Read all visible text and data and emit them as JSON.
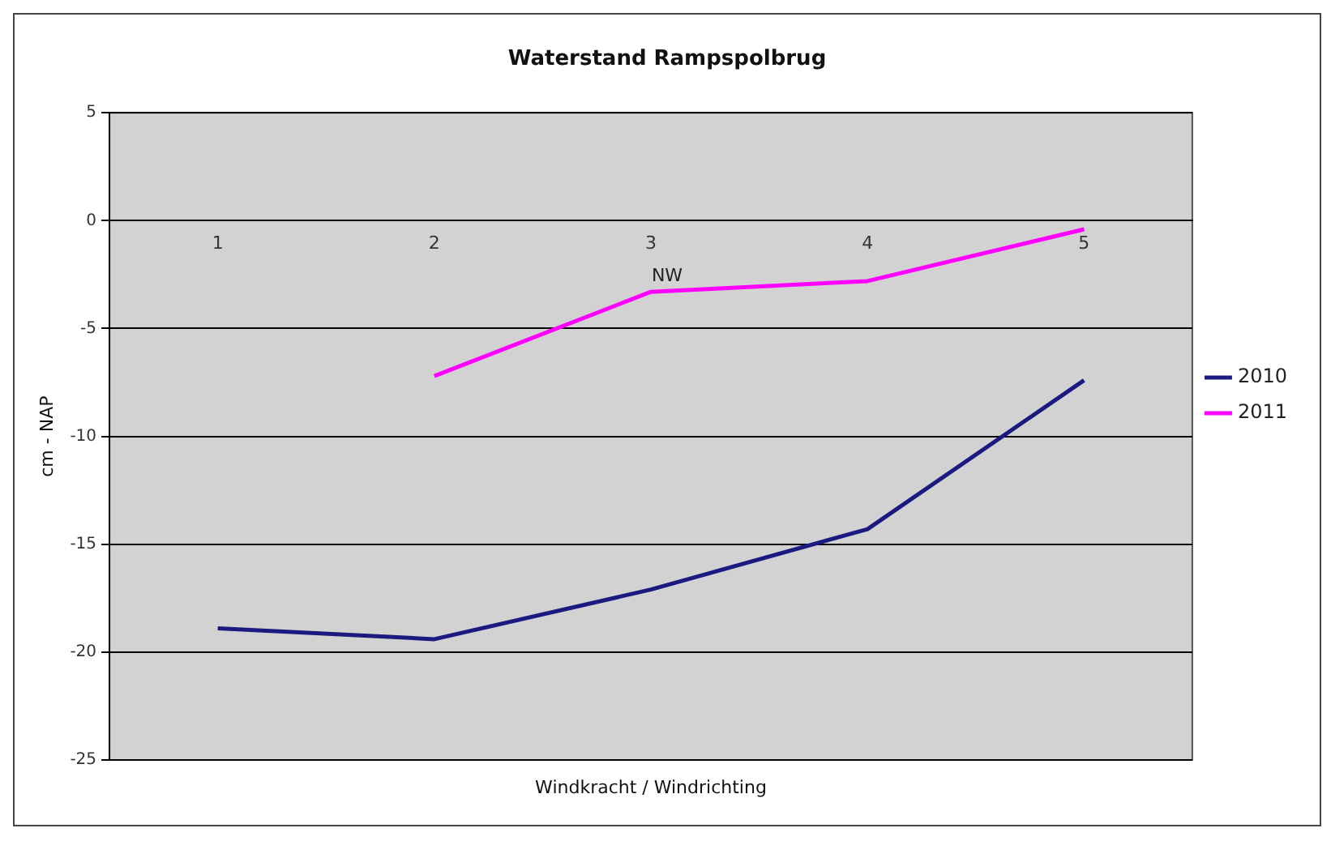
{
  "chart_data": {
    "type": "line",
    "title": "Waterstand Rampspolbrug",
    "xlabel": "Windkracht / Windrichting",
    "ylabel": "cm - NAP",
    "categories": [
      "1",
      "2",
      "3",
      "4",
      "5"
    ],
    "series": [
      {
        "name": "2010",
        "color": "#1a1a80",
        "values": [
          -18.9,
          -19.4,
          -17.1,
          -14.3,
          -7.4
        ]
      },
      {
        "name": "2011",
        "color": "#ff00ff",
        "values": [
          null,
          -7.2,
          -3.3,
          -2.8,
          -0.4
        ]
      }
    ],
    "ylim": [
      -25,
      5
    ],
    "yticks": [
      -25,
      -20,
      -15,
      -10,
      -5,
      0,
      5
    ],
    "grid": "y",
    "legend": "right",
    "marker": "none",
    "line_style": "solid",
    "annotations": [
      {
        "text": "NW",
        "x": "3",
        "y": -3.3
      }
    ]
  }
}
